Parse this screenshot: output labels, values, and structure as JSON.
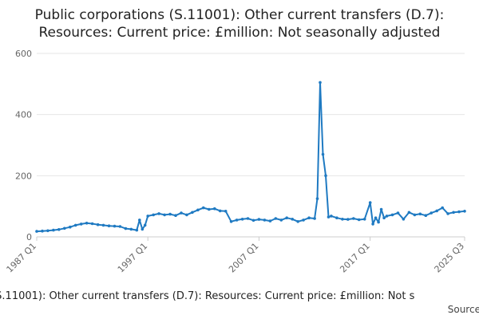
{
  "title_line1": "Public corporations (S.11001): Other current transfers (D.7):",
  "title_line2": "Resources: Current price: £million: Not seasonally adjusted",
  "legend_text": "ons (S.11001): Other current transfers (D.7): Resources: Current price: £million: Not s",
  "source_text": "Source:",
  "colors": {
    "series": "#1f7ac2",
    "grid": "#e6e6e6",
    "axis": "#cccccc",
    "text": "#666666"
  },
  "chart_data": {
    "type": "line",
    "title": "Public corporations (S.11001): Other current transfers (D.7): Resources: Current price: £million: Not seasonally adjusted",
    "xlabel": "",
    "ylabel": "",
    "ylim": [
      0,
      600
    ],
    "yticks": [
      "0",
      "200",
      "400",
      "600"
    ],
    "xticks": [
      "1987 Q1",
      "1997 Q1",
      "2007 Q1",
      "2017 Q1",
      "2025 Q3"
    ],
    "grid": true,
    "series": [
      {
        "x": [
          "1987 Q1",
          "1987 Q3",
          "1988 Q1",
          "1988 Q3",
          "1989 Q1",
          "1989 Q3",
          "1990 Q1",
          "1990 Q3",
          "1991 Q1",
          "1991 Q3",
          "1992 Q1",
          "1992 Q3",
          "1993 Q1",
          "1993 Q3",
          "1994 Q1",
          "1994 Q3",
          "1995 Q1",
          "1995 Q3",
          "1996 Q1",
          "1996 Q2",
          "1996 Q3",
          "1996 Q4",
          "1997 Q1",
          "1997 Q3",
          "1998 Q1",
          "1998 Q3",
          "1999 Q1",
          "1999 Q3",
          "2000 Q1",
          "2000 Q3",
          "2001 Q1",
          "2001 Q3",
          "2002 Q1",
          "2002 Q3",
          "2003 Q1",
          "2003 Q3",
          "2004 Q1",
          "2004 Q3",
          "2005 Q1",
          "2005 Q3",
          "2006 Q1",
          "2006 Q3",
          "2007 Q1",
          "2007 Q3",
          "2008 Q1",
          "2008 Q3",
          "2009 Q1",
          "2009 Q3",
          "2010 Q1",
          "2010 Q3",
          "2011 Q1",
          "2011 Q3",
          "2012 Q1",
          "2012 Q2",
          "2012 Q3",
          "2012 Q4",
          "2013 Q1",
          "2013 Q2",
          "2013 Q3",
          "2014 Q1",
          "2014 Q3",
          "2015 Q1",
          "2015 Q3",
          "2016 Q1",
          "2016 Q3",
          "2017 Q1",
          "2017 Q2",
          "2017 Q3",
          "2017 Q4",
          "2018 Q1",
          "2018 Q2",
          "2018 Q3",
          "2019 Q1",
          "2019 Q3",
          "2020 Q1",
          "2020 Q3",
          "2021 Q1",
          "2021 Q3",
          "2022 Q1",
          "2022 Q3",
          "2023 Q1",
          "2023 Q3",
          "2024 Q1",
          "2024 Q3",
          "2025 Q1",
          "2025 Q3"
        ],
        "values": [
          18,
          19,
          20,
          22,
          24,
          28,
          32,
          38,
          42,
          45,
          43,
          40,
          38,
          36,
          35,
          34,
          27,
          25,
          22,
          55,
          25,
          38,
          68,
          72,
          76,
          72,
          74,
          70,
          78,
          72,
          80,
          88,
          95,
          90,
          92,
          85,
          84,
          50,
          55,
          58,
          60,
          54,
          57,
          55,
          52,
          60,
          55,
          62,
          58,
          50,
          55,
          62,
          60,
          125,
          505,
          270,
          200,
          65,
          68,
          62,
          58,
          57,
          60,
          56,
          58,
          112,
          42,
          62,
          48,
          90,
          62,
          68,
          72,
          78,
          58,
          80,
          72,
          75,
          70,
          78,
          85,
          95,
          76,
          80,
          82,
          84
        ]
      }
    ]
  }
}
